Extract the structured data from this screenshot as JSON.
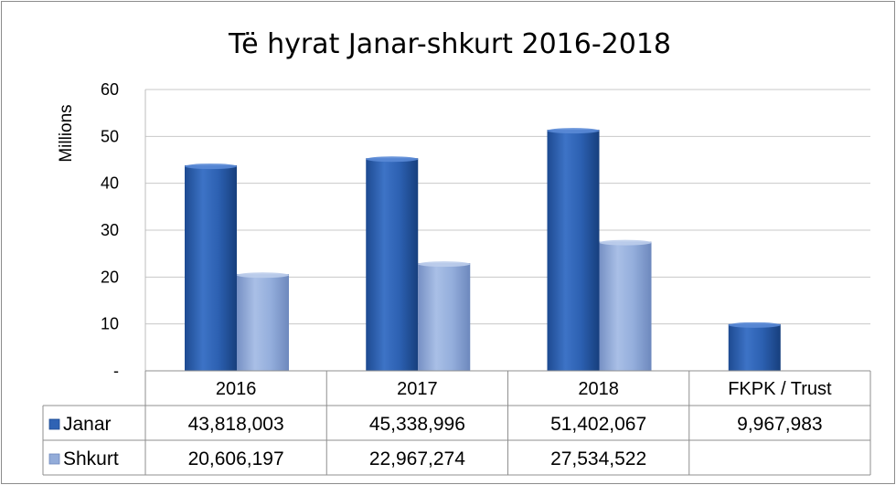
{
  "chart_data": {
    "type": "bar",
    "title": "Të hyrat Janar-shkurt 2016-2018",
    "ylabel": "Millions",
    "ylim": [
      0,
      60
    ],
    "yticks": [
      "-",
      "10",
      "20",
      "30",
      "40",
      "50",
      "60"
    ],
    "categories": [
      "2016",
      "2017",
      "2018",
      "FKPK / Trust"
    ],
    "series": [
      {
        "name": "Janar",
        "values": [
          43.818003,
          45.338996,
          51.402067,
          9.967983
        ],
        "labels": [
          "43,818,003",
          "45,338,996",
          "51,402,067",
          "9,967,983"
        ],
        "color": "#2f63b4"
      },
      {
        "name": "Shkurt",
        "values": [
          20.606197,
          22.967274,
          27.534522,
          null
        ],
        "labels": [
          "20,606,197",
          "22,967,274",
          "27,534,522",
          ""
        ],
        "color": "#93acd9"
      }
    ],
    "grid": true,
    "legend": "data table",
    "data_table": true
  }
}
